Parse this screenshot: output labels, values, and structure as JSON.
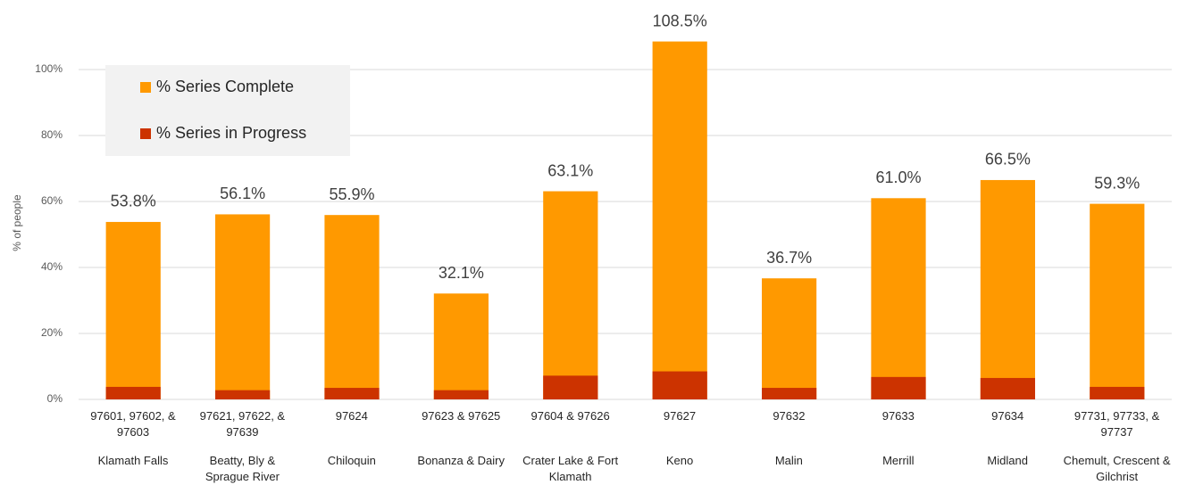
{
  "chart_data": {
    "type": "bar",
    "overlap": true,
    "y_label": "% of people",
    "categories": [
      "97601, 97602, & 97603",
      "97621, 97622, & 97639",
      "97624",
      "97623 & 97625",
      "97604 & 97626",
      "97627",
      "97632",
      "97633",
      "97634",
      "97731, 97733, & 97737"
    ],
    "places": [
      "Klamath Falls",
      "Beatty, Bly & Sprague River",
      "Chiloquin",
      "Bonanza & Dairy",
      "Crater Lake & Fort Klamath",
      "Keno",
      "Malin",
      "Merrill",
      "Midland",
      "Chemult, Crescent & Gilchrist"
    ],
    "series": [
      {
        "name": "% Series Complete",
        "color": "#ff9900",
        "values": [
          53.8,
          56.1,
          55.9,
          32.1,
          63.1,
          108.5,
          36.7,
          61.0,
          66.5,
          59.3
        ],
        "value_labels": [
          "53.8%",
          "56.1%",
          "55.9%",
          "32.1%",
          "63.1%",
          "108.5%",
          "36.7%",
          "61.0%",
          "66.5%",
          "59.3%"
        ]
      },
      {
        "name": "% Series in Progress",
        "color": "#cc3300",
        "values": [
          3.8,
          2.8,
          3.5,
          2.8,
          7.2,
          8.5,
          3.5,
          6.8,
          6.5,
          3.8
        ]
      }
    ],
    "ylim": [
      0,
      110
    ],
    "yticks": [
      {
        "value": 0,
        "label": "0%"
      },
      {
        "value": 20,
        "label": "20%"
      },
      {
        "value": 40,
        "label": "40%"
      },
      {
        "value": 60,
        "label": "60%"
      },
      {
        "value": 80,
        "label": "80%"
      },
      {
        "value": 100,
        "label": "100%"
      }
    ],
    "grid": true,
    "legend": "top-left"
  }
}
